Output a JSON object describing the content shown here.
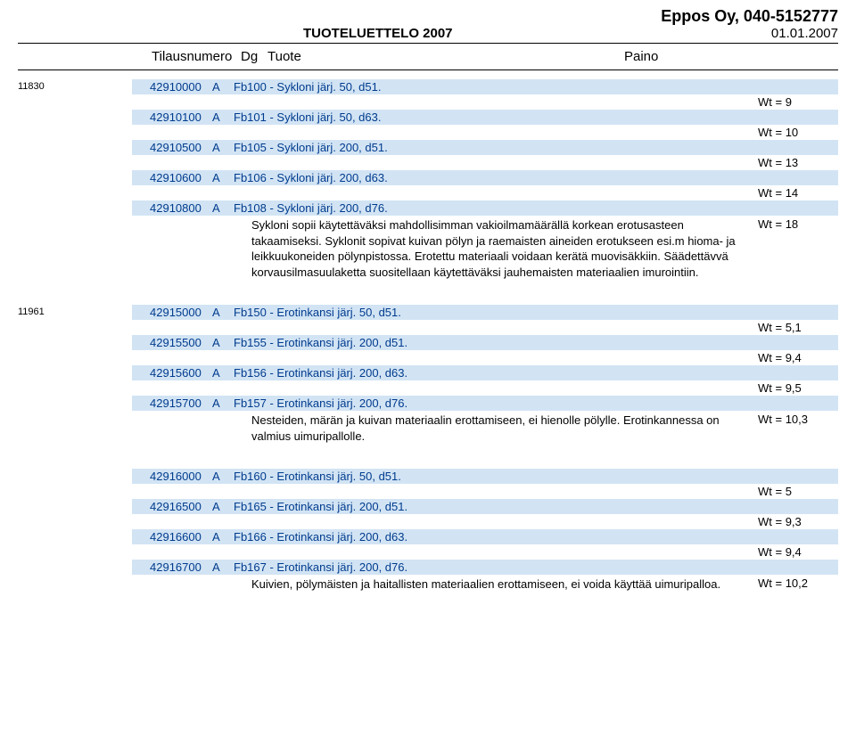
{
  "header": {
    "catalog_title": "TUOTELUETTELO 2007",
    "company": "Eppos Oy, 040-5152777",
    "date": "01.01.2007"
  },
  "columns": {
    "order": "Tilausnumero",
    "dg": "Dg",
    "product": "Tuote",
    "weight": "Paino"
  },
  "colors": {
    "row_bg": "#d2e4f4",
    "row_text": "#003b8e",
    "page_bg": "#ffffff",
    "text": "#000000"
  },
  "groups": [
    {
      "pic_id": "11830",
      "rows": [
        {
          "code": "42910000",
          "dg": "A",
          "desc": "Fb100 - Sykloni järj. 50, d51.",
          "wt": "Wt = 9"
        },
        {
          "code": "42910100",
          "dg": "A",
          "desc": "Fb101 - Sykloni järj. 50, d63.",
          "wt": "Wt = 10"
        },
        {
          "code": "42910500",
          "dg": "A",
          "desc": "Fb105 - Sykloni järj. 200, d51.",
          "wt": "Wt = 13"
        },
        {
          "code": "42910600",
          "dg": "A",
          "desc": "Fb106 - Sykloni järj. 200, d63.",
          "wt": "Wt = 14"
        },
        {
          "code": "42910800",
          "dg": "A",
          "desc": "Fb108 - Sykloni järj. 200, d76.",
          "wt": ""
        }
      ],
      "tail": {
        "text": "Sykloni sopii käytettäväksi mahdollisimman vakioilmamäärällä korkean erotusasteen takaamiseksi. Syklonit sopivat kuivan pölyn ja raemaisten aineiden erotukseen esi.m hioma- ja leikkuukoneiden pölynpistossa. Erotettu materiaali voidaan kerätä muovisäkkiin. Säädettävvä korvausilmasuulaketta suositellaan käytettäväksi jauhemaisten materiaalien imurointiin.",
        "wt": "Wt = 18"
      }
    },
    {
      "pic_id": "11961",
      "rows": [
        {
          "code": "42915000",
          "dg": "A",
          "desc": "Fb150 - Erotinkansi järj. 50, d51.",
          "wt": "Wt = 5,1"
        },
        {
          "code": "42915500",
          "dg": "A",
          "desc": "Fb155 - Erotinkansi järj. 200, d51.",
          "wt": "Wt = 9,4"
        },
        {
          "code": "42915600",
          "dg": "A",
          "desc": "Fb156 - Erotinkansi järj. 200, d63.",
          "wt": "Wt = 9,5"
        },
        {
          "code": "42915700",
          "dg": "A",
          "desc": "Fb157 - Erotinkansi järj. 200, d76.",
          "wt": ""
        }
      ],
      "tail": {
        "text": "Nesteiden, märän ja kuivan materiaalin erottamiseen, ei hienolle pölylle. Erotinkannessa on valmius uimuripallolle.",
        "wt": "Wt = 10,3"
      }
    },
    {
      "pic_id": "",
      "rows": [
        {
          "code": "42916000",
          "dg": "A",
          "desc": "Fb160 - Erotinkansi järj. 50, d51.",
          "wt": "Wt = 5"
        },
        {
          "code": "42916500",
          "dg": "A",
          "desc": "Fb165 - Erotinkansi järj. 200, d51.",
          "wt": "Wt = 9,3"
        },
        {
          "code": "42916600",
          "dg": "A",
          "desc": "Fb166 - Erotinkansi järj. 200, d63.",
          "wt": "Wt = 9,4"
        },
        {
          "code": "42916700",
          "dg": "A",
          "desc": "Fb167 - Erotinkansi järj. 200, d76.",
          "wt": ""
        }
      ],
      "tail": {
        "text": "Kuivien, pölymäisten ja haitallisten materiaalien erottamiseen, ei voida käyttää uimuripalloa.",
        "wt": "Wt = 10,2"
      }
    }
  ]
}
